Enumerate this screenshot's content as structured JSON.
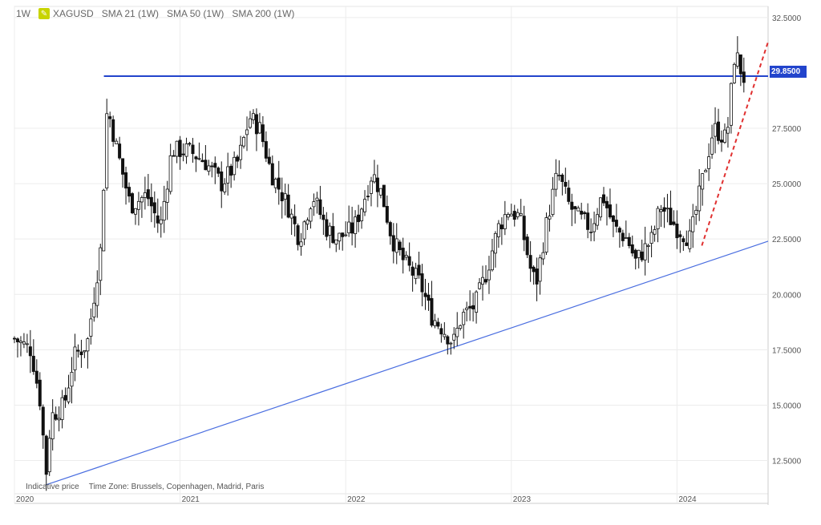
{
  "header": {
    "timeframe": "1W",
    "symbol": "XAGUSD",
    "indicators": [
      "SMA 21 (1W)",
      "SMA 50 (1W)",
      "SMA 200 (1W)"
    ]
  },
  "footnote": {
    "indicative": "Indicative price",
    "timezone": "Time Zone: Brussels, Copenhagen, Madrid, Paris"
  },
  "price_tag": "29.8500",
  "colors": {
    "resistance": "#2244cc",
    "support": "#4a6ee0",
    "trend": "#e03030",
    "candle": "#111111"
  },
  "chart_data": {
    "type": "candlestick",
    "instrument": "XAGUSD",
    "timeframe": "weekly",
    "x_tick_labels": [
      "2020",
      "2021",
      "2022",
      "2023",
      "2024"
    ],
    "y_tick_labels": [
      "12.5000",
      "15.0000",
      "17.5000",
      "20.0000",
      "22.5000",
      "25.0000",
      "27.5000",
      "29.8500",
      "32.5000"
    ],
    "ylim": [
      11.0,
      33.0
    ],
    "xlim": [
      2020.0,
      2024.55
    ],
    "grid": true,
    "close_path": [
      [
        2020.0,
        18.0
      ],
      [
        2020.1,
        17.5
      ],
      [
        2020.16,
        15.0
      ],
      [
        2020.19,
        11.8
      ],
      [
        2020.22,
        14.5
      ],
      [
        2020.3,
        15.0
      ],
      [
        2020.36,
        17.2
      ],
      [
        2020.44,
        17.8
      ],
      [
        2020.52,
        22.0
      ],
      [
        2020.56,
        28.5
      ],
      [
        2020.62,
        26.5
      ],
      [
        2020.7,
        24.0
      ],
      [
        2020.8,
        24.5
      ],
      [
        2020.88,
        23.0
      ],
      [
        2020.95,
        26.5
      ],
      [
        2021.05,
        26.5
      ],
      [
        2021.15,
        26.0
      ],
      [
        2021.25,
        25.0
      ],
      [
        2021.35,
        26.0
      ],
      [
        2021.42,
        28.0
      ],
      [
        2021.48,
        27.5
      ],
      [
        2021.55,
        25.5
      ],
      [
        2021.65,
        24.0
      ],
      [
        2021.72,
        22.5
      ],
      [
        2021.8,
        24.5
      ],
      [
        2021.88,
        23.0
      ],
      [
        2021.95,
        22.5
      ],
      [
        2022.05,
        23.0
      ],
      [
        2022.12,
        24.5
      ],
      [
        2022.16,
        25.5
      ],
      [
        2022.22,
        24.5
      ],
      [
        2022.28,
        22.5
      ],
      [
        2022.35,
        21.5
      ],
      [
        2022.45,
        20.5
      ],
      [
        2022.52,
        19.0
      ],
      [
        2022.58,
        18.5
      ],
      [
        2022.65,
        17.8
      ],
      [
        2022.7,
        19.0
      ],
      [
        2022.78,
        19.5
      ],
      [
        2022.85,
        21.0
      ],
      [
        2022.92,
        23.0
      ],
      [
        2022.98,
        23.8
      ],
      [
        2023.05,
        23.5
      ],
      [
        2023.12,
        21.0
      ],
      [
        2023.15,
        20.5
      ],
      [
        2023.22,
        23.5
      ],
      [
        2023.28,
        25.5
      ],
      [
        2023.35,
        24.0
      ],
      [
        2023.4,
        23.5
      ],
      [
        2023.48,
        23.0
      ],
      [
        2023.55,
        24.5
      ],
      [
        2023.62,
        23.0
      ],
      [
        2023.7,
        22.5
      ],
      [
        2023.75,
        21.5
      ],
      [
        2023.85,
        22.5
      ],
      [
        2023.9,
        24.0
      ],
      [
        2023.95,
        23.5
      ],
      [
        2024.0,
        23.0
      ],
      [
        2024.08,
        22.5
      ],
      [
        2024.15,
        25.0
      ],
      [
        2024.22,
        27.5
      ],
      [
        2024.3,
        27.0
      ],
      [
        2024.35,
        31.0
      ],
      [
        2024.39,
        30.0
      ],
      [
        2024.42,
        29.5
      ]
    ],
    "annotations": {
      "resistance": {
        "y": 29.85,
        "x_start": 2020.54,
        "x_end": 2024.55
      },
      "support": {
        "p1": [
          2020.19,
          11.4
        ],
        "p2": [
          2024.55,
          22.4
        ]
      },
      "trend": {
        "p1": [
          2024.15,
          22.2
        ],
        "p2": [
          2024.55,
          31.4
        ]
      }
    }
  }
}
